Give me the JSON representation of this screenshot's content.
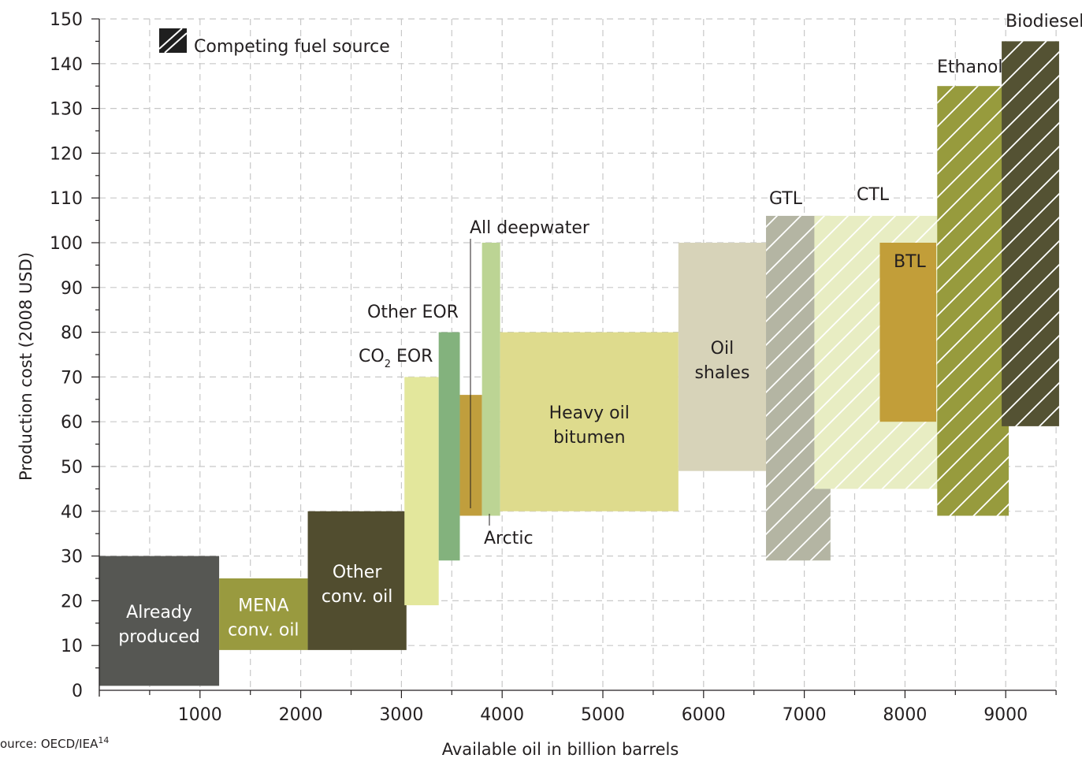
{
  "chart_data": {
    "type": "bar",
    "title": "",
    "xlabel": "Available oil in billion barrels",
    "ylabel": "Production cost (2008 USD)",
    "xlim": [
      0,
      9500
    ],
    "ylim": [
      0,
      150
    ],
    "x_ticks": [
      1000,
      2000,
      3000,
      4000,
      5000,
      6000,
      7000,
      8000,
      9000
    ],
    "y_ticks": [
      0,
      10,
      20,
      30,
      40,
      50,
      60,
      70,
      80,
      90,
      100,
      110,
      120,
      130,
      140,
      150
    ],
    "grid": true,
    "legend": {
      "label": "Competing fuel source",
      "placement": "top-left"
    },
    "series": [
      {
        "name": "Already produced",
        "lines": [
          "Already",
          "produced"
        ],
        "x_start": 0,
        "x_end": 1190,
        "y_min": 1,
        "y_max": 30,
        "color": "#565753",
        "hatched": false,
        "label_color": "#ffffff"
      },
      {
        "name": "MENA conv. oil",
        "lines": [
          "MENA",
          "conv. oil"
        ],
        "x_start": 1190,
        "x_end": 2070,
        "y_min": 9,
        "y_max": 25,
        "color": "#999a3f",
        "hatched": false,
        "label_color": "#ffffff"
      },
      {
        "name": "Other conv. oil",
        "lines": [
          "Other",
          "conv. oil"
        ],
        "x_start": 2070,
        "x_end": 3050,
        "y_min": 9,
        "y_max": 40,
        "color": "#514d2f",
        "hatched": false,
        "label_color": "#ffffff"
      },
      {
        "name": "CO2 EOR",
        "x_start": 3030,
        "x_end": 3370,
        "y_min": 19,
        "y_max": 70,
        "color": "#e3e79c",
        "hatched": false
      },
      {
        "name": "Other EOR",
        "x_start": 3370,
        "x_end": 3580,
        "y_min": 29,
        "y_max": 80,
        "color": "#83b27d",
        "hatched": false
      },
      {
        "name": "All deepwater",
        "x_start": 3580,
        "x_end": 3800,
        "y_min": 39,
        "y_max": 66,
        "color": "#c09e3d",
        "hatched": false
      },
      {
        "name": "Arctic",
        "x_start": 3800,
        "x_end": 3980,
        "y_min": 39,
        "y_max": 100,
        "color": "#bcd494",
        "hatched": false
      },
      {
        "name": "Heavy oil bitumen",
        "lines": [
          "Heavy oil",
          "bitumen"
        ],
        "x_start": 3980,
        "x_end": 5750,
        "y_min": 40,
        "y_max": 80,
        "color": "#dedb8d",
        "hatched": false,
        "label_color": "#231f20"
      },
      {
        "name": "Oil shales",
        "lines": [
          "Oil",
          "shales"
        ],
        "x_start": 5750,
        "x_end": 6620,
        "y_min": 49,
        "y_max": 100,
        "color": "#d7d3b9",
        "hatched": false,
        "label_color": "#231f20"
      },
      {
        "name": "GTL",
        "x_start": 6620,
        "x_end": 7260,
        "y_min": 29,
        "y_max": 106,
        "color": "#b4b5a3",
        "hatched": true
      },
      {
        "name": "CTL",
        "x_start": 7100,
        "x_end": 8350,
        "y_min": 45,
        "y_max": 106,
        "color": "#e8edc3",
        "hatched": true
      },
      {
        "name": "BTL",
        "x_start": 7750,
        "x_end": 8310,
        "y_min": 60,
        "y_max": 100,
        "color": "#c29e39",
        "hatched": false
      },
      {
        "name": "Ethanol",
        "x_start": 8320,
        "x_end": 9030,
        "y_min": 39,
        "y_max": 135,
        "color": "#979b3d",
        "hatched": true
      },
      {
        "name": "Biodiesel",
        "x_start": 8960,
        "x_end": 9530,
        "y_min": 59,
        "y_max": 145,
        "color": "#545233",
        "hatched": true
      }
    ]
  },
  "labels": {
    "co2_prefix": "CO",
    "co2_sub": "2",
    "co2_suffix": " EOR"
  },
  "source": {
    "text": "ource: OECD/IEA",
    "ref": "14"
  }
}
